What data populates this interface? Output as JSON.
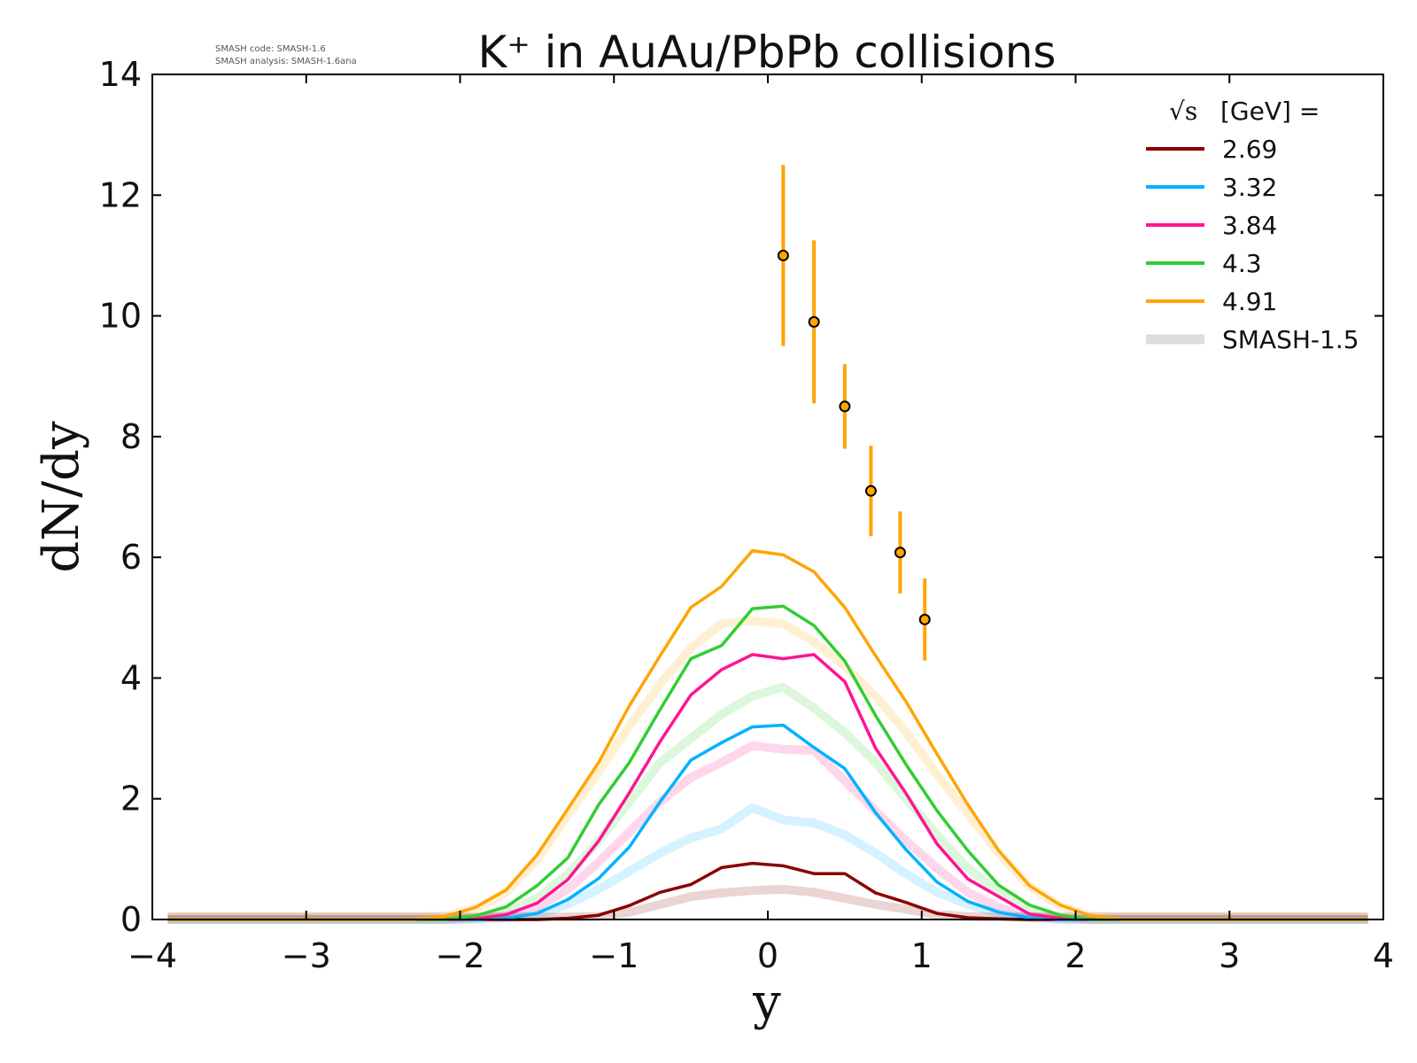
{
  "header_note": {
    "line1": "SMASH code:      SMASH-1.6",
    "line2": "SMASH analysis: SMASH-1.6ana"
  },
  "chart_data": {
    "type": "line",
    "title": "K⁺ in AuAu/PbPb collisions",
    "xlabel": "y",
    "ylabel": "dN/dy",
    "xlim": [
      -4,
      4
    ],
    "ylim": [
      0,
      14
    ],
    "xticks": [
      -4,
      -3,
      -2,
      -1,
      0,
      1,
      2,
      3,
      4
    ],
    "yticks": [
      0,
      2,
      4,
      6,
      8,
      10,
      12,
      14
    ],
    "xtick_labels": [
      "−4",
      "−3",
      "−2",
      "−1",
      "0",
      "1",
      "2",
      "3",
      "4"
    ],
    "ytick_labels": [
      "0",
      "2",
      "4",
      "6",
      "8",
      "10",
      "12",
      "14"
    ],
    "grid": false,
    "legend": {
      "placement": "top-right",
      "title_symbol": "√s",
      "title_text": "[GeV] =",
      "reference_label": "SMASH-1.5",
      "reference_color": "#dddddd"
    },
    "x": [
      -3.9,
      -3.7,
      -3.5,
      -3.3,
      -3.1,
      -2.9,
      -2.7,
      -2.5,
      -2.3,
      -2.1,
      -1.9,
      -1.7,
      -1.5,
      -1.3,
      -1.1,
      -0.9,
      -0.7,
      -0.5,
      -0.3,
      -0.1,
      0.1,
      0.3,
      0.5,
      0.7,
      0.9,
      1.1,
      1.3,
      1.5,
      1.7,
      1.9,
      2.1,
      2.3,
      2.5,
      2.7,
      2.9,
      3.1,
      3.3,
      3.5,
      3.7,
      3.9
    ],
    "series": [
      {
        "name": "2.69",
        "color": "#8b0000",
        "values": [
          0,
          0,
          0,
          0,
          0,
          0,
          0,
          0,
          0,
          0,
          0,
          0,
          0,
          0.02,
          0.07,
          0.23,
          0.45,
          0.58,
          0.86,
          0.93,
          0.89,
          0.76,
          0.76,
          0.44,
          0.28,
          0.1,
          0.03,
          0.01,
          0,
          0,
          0,
          0,
          0,
          0,
          0,
          0,
          0,
          0,
          0,
          0
        ]
      },
      {
        "name": "3.32",
        "color": "#00b2ff",
        "values": [
          0,
          0,
          0,
          0,
          0,
          0,
          0,
          0,
          0,
          0,
          0,
          0.02,
          0.1,
          0.33,
          0.68,
          1.2,
          1.95,
          2.64,
          2.93,
          3.19,
          3.22,
          2.85,
          2.5,
          1.77,
          1.15,
          0.62,
          0.3,
          0.12,
          0.03,
          0,
          0,
          0,
          0,
          0,
          0,
          0,
          0,
          0,
          0,
          0
        ]
      },
      {
        "name": "3.84",
        "color": "#ff1493",
        "values": [
          0,
          0,
          0,
          0,
          0,
          0,
          0,
          0,
          0,
          0,
          0.01,
          0.08,
          0.27,
          0.66,
          1.3,
          2.1,
          2.95,
          3.72,
          4.14,
          4.39,
          4.32,
          4.39,
          3.94,
          2.84,
          2.08,
          1.25,
          0.67,
          0.38,
          0.09,
          0.02,
          0,
          0,
          0,
          0,
          0,
          0,
          0,
          0,
          0,
          0
        ]
      },
      {
        "name": "4.3",
        "color": "#32cd32",
        "values": [
          0,
          0,
          0,
          0,
          0,
          0,
          0,
          0,
          0,
          0,
          0.06,
          0.21,
          0.56,
          1.02,
          1.9,
          2.6,
          3.48,
          4.32,
          4.54,
          5.15,
          5.19,
          4.87,
          4.28,
          3.38,
          2.56,
          1.8,
          1.14,
          0.57,
          0.24,
          0.07,
          0,
          0,
          0,
          0,
          0,
          0,
          0,
          0,
          0,
          0
        ]
      },
      {
        "name": "4.91",
        "color": "#ffa500",
        "values": [
          0,
          0,
          0,
          0,
          0,
          0,
          0,
          0,
          0,
          0.05,
          0.2,
          0.49,
          1.07,
          1.83,
          2.6,
          3.54,
          4.37,
          5.17,
          5.52,
          6.11,
          6.04,
          5.76,
          5.17,
          4.37,
          3.6,
          2.74,
          1.9,
          1.14,
          0.56,
          0.24,
          0.06,
          0,
          0,
          0,
          0,
          0,
          0,
          0,
          0,
          0
        ]
      }
    ],
    "reference_series": [
      {
        "name": "SMASH-1.5",
        "color": "#ffa500",
        "values": [
          0.05,
          0.05,
          0.05,
          0.05,
          0.05,
          0.05,
          0.05,
          0.05,
          0.05,
          0.06,
          0.18,
          0.45,
          1.0,
          1.72,
          2.45,
          3.2,
          3.9,
          4.5,
          4.9,
          4.95,
          4.9,
          4.6,
          4.2,
          3.7,
          3.1,
          2.4,
          1.75,
          1.1,
          0.55,
          0.22,
          0.06,
          0.05,
          0.05,
          0.05,
          0.05,
          0.05,
          0.05,
          0.05,
          0.05,
          0.05
        ]
      },
      {
        "name": "SMASH-1.5",
        "color": "#32cd32",
        "values": [
          0,
          0,
          0,
          0,
          0,
          0,
          0,
          0,
          0,
          0,
          0.03,
          0.12,
          0.35,
          0.75,
          1.3,
          1.95,
          2.6,
          3.0,
          3.4,
          3.7,
          3.85,
          3.5,
          3.1,
          2.6,
          2.0,
          1.4,
          0.85,
          0.45,
          0.15,
          0.04,
          0,
          0,
          0,
          0,
          0,
          0,
          0,
          0,
          0,
          0
        ]
      },
      {
        "name": "SMASH-1.5",
        "color": "#ff1493",
        "values": [
          0,
          0,
          0,
          0,
          0,
          0,
          0,
          0,
          0,
          0,
          0.02,
          0.06,
          0.2,
          0.5,
          0.95,
          1.45,
          1.95,
          2.35,
          2.6,
          2.88,
          2.82,
          2.8,
          2.3,
          1.8,
          1.3,
          0.85,
          0.45,
          0.2,
          0.06,
          0.01,
          0,
          0,
          0,
          0,
          0,
          0,
          0,
          0,
          0,
          0
        ]
      },
      {
        "name": "SMASH-1.5",
        "color": "#00b2ff",
        "values": [
          0,
          0,
          0,
          0,
          0,
          0,
          0,
          0,
          0,
          0,
          0,
          0.02,
          0.08,
          0.25,
          0.5,
          0.8,
          1.1,
          1.35,
          1.5,
          1.85,
          1.65,
          1.6,
          1.4,
          1.1,
          0.75,
          0.45,
          0.25,
          0.1,
          0.02,
          0,
          0,
          0,
          0,
          0,
          0,
          0,
          0,
          0,
          0,
          0
        ]
      },
      {
        "name": "SMASH-1.5",
        "color": "#8b0000",
        "values": [
          0.04,
          0.04,
          0.04,
          0.04,
          0.04,
          0.04,
          0.04,
          0.04,
          0.04,
          0.04,
          0.04,
          0.04,
          0.04,
          0.04,
          0.05,
          0.12,
          0.25,
          0.38,
          0.44,
          0.48,
          0.5,
          0.45,
          0.35,
          0.25,
          0.17,
          0.08,
          0.05,
          0.04,
          0.04,
          0.04,
          0.04,
          0.04,
          0.04,
          0.04,
          0.04,
          0.04,
          0.04,
          0.04,
          0.04,
          0.04
        ]
      }
    ],
    "data_points": {
      "color": "#ffa500",
      "points": [
        {
          "x": 0.1,
          "y": 11.0,
          "yerr": 1.5
        },
        {
          "x": 0.3,
          "y": 9.9,
          "yerr": 1.35
        },
        {
          "x": 0.5,
          "y": 8.5,
          "yerr": 0.7
        },
        {
          "x": 0.67,
          "y": 7.1,
          "yerr": 0.75
        },
        {
          "x": 0.86,
          "y": 6.08,
          "yerr": 0.68
        },
        {
          "x": 1.02,
          "y": 4.97,
          "yerr": 0.68
        }
      ]
    }
  }
}
